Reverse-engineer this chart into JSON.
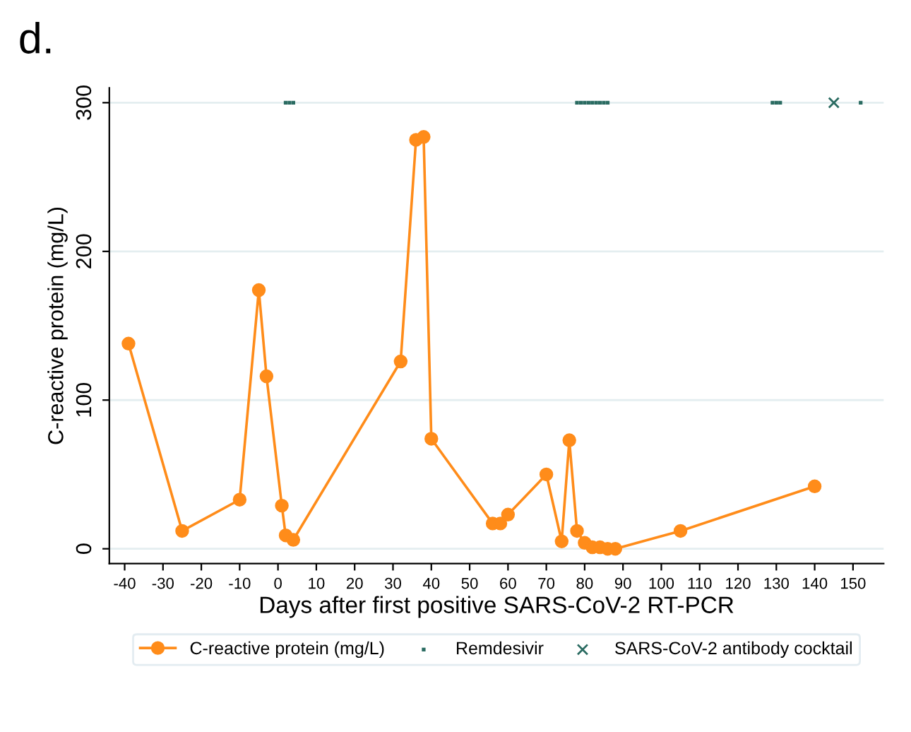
{
  "chart_data": {
    "type": "line",
    "title": "d.",
    "xlabel": "Days after first positive SARS-CoV-2 RT-PCR",
    "ylabel": "C-reactive protein (mg/L)",
    "xlim": [
      -44,
      158
    ],
    "xticks": [
      -40,
      -30,
      -20,
      -10,
      0,
      10,
      20,
      30,
      40,
      50,
      60,
      70,
      80,
      90,
      100,
      110,
      120,
      130,
      140,
      150
    ],
    "ylim": [
      -10,
      310
    ],
    "yticks": [
      0,
      100,
      200,
      300
    ],
    "grid": "y",
    "legend": "bottom",
    "series": [
      {
        "name": "C-reactive protein (mg/L)",
        "color": "#ff8c1a",
        "marker": "circle",
        "x": [
          -39,
          -25,
          -10,
          -5,
          -3,
          1,
          2,
          4,
          32,
          36,
          38,
          40,
          56,
          58,
          60,
          70,
          74,
          76,
          78,
          80,
          82,
          84,
          86,
          88,
          105,
          140
        ],
        "values": [
          138,
          12,
          33,
          174,
          116,
          29,
          9,
          6,
          126,
          275,
          277,
          74,
          17,
          17,
          23,
          50,
          5,
          73,
          12,
          4,
          1,
          1,
          0,
          0,
          12,
          42
        ]
      },
      {
        "name": "Remdesivir",
        "type": "scatter",
        "color": "#2a6b61",
        "marker": "square",
        "x": [
          2,
          3,
          4,
          78,
          79,
          80,
          81,
          82,
          83,
          84,
          85,
          86,
          129,
          130,
          131,
          152
        ],
        "values": [
          300,
          300,
          300,
          300,
          300,
          300,
          300,
          300,
          300,
          300,
          300,
          300,
          300,
          300,
          300,
          300
        ]
      },
      {
        "name": "SARS-CoV-2 antibody cocktail",
        "type": "scatter",
        "color": "#2a6b61",
        "marker": "cross",
        "x": [
          145
        ],
        "values": [
          300
        ]
      }
    ]
  }
}
